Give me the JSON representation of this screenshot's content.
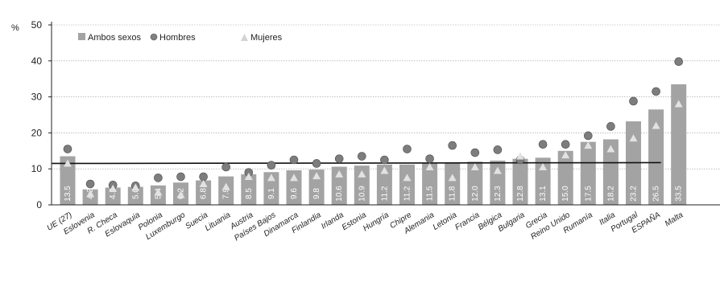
{
  "chart_data": {
    "type": "bar",
    "y_unit": "%",
    "ylim": [
      0,
      50
    ],
    "yticks": [
      0,
      10,
      20,
      30,
      40,
      50
    ],
    "grid": true,
    "legend_position": "top-left",
    "categories": [
      "UE (27)",
      "Eslovenia",
      "R. Checa",
      "Eslovaquia",
      "Polonia",
      "Luxemburgo",
      "Suecia",
      "Lituania",
      "Austria",
      "Países Bajos",
      "Dinamarca",
      "Finlandia",
      "Irlanda",
      "Estonia",
      "Hungría",
      "Chipre",
      "Alemania",
      "Letonia",
      "Francia",
      "Bélgica",
      "Bulgaria",
      "Grecia",
      "Reino Unido",
      "Rumanía",
      "Italia",
      "Portugal",
      "ESPAÑA",
      "Malta"
    ],
    "series": [
      {
        "name": "Ambos sexos",
        "marker": "bar",
        "values": [
          13.5,
          4.3,
          4.8,
          5.0,
          5.4,
          6.2,
          6.8,
          7.9,
          8.5,
          9.1,
          9.6,
          9.8,
          10.6,
          10.9,
          11.2,
          11.2,
          11.5,
          11.8,
          12.0,
          12.3,
          12.8,
          13.1,
          15.0,
          17.5,
          18.2,
          23.2,
          26.5,
          33.5
        ],
        "labels": [
          "13.5",
          "4.3",
          "4.8",
          "5.0",
          "5.4",
          "6.2",
          "6.8",
          "7.9",
          "8.5",
          "9.1",
          "9.6",
          "9.8",
          "10.6",
          "10.9",
          "11.2",
          "11.2",
          "11.5",
          "11.8",
          "12.0",
          "12.3",
          "12.8",
          "13.1",
          "15.0",
          "17.5",
          "18.2",
          "23.2",
          "26.5",
          "33.5"
        ]
      },
      {
        "name": "Hombres",
        "marker": "circle",
        "values": [
          15.5,
          5.8,
          5.5,
          5.3,
          7.5,
          7.8,
          7.8,
          10.5,
          9.0,
          11.0,
          12.5,
          11.5,
          12.8,
          13.5,
          12.5,
          15.5,
          12.8,
          16.5,
          14.5,
          15.3,
          12.5,
          16.8,
          16.8,
          19.2,
          21.8,
          28.8,
          31.5,
          39.8
        ]
      },
      {
        "name": "Mujeres",
        "marker": "triangle",
        "values": [
          11.5,
          3.0,
          4.5,
          4.8,
          3.5,
          2.8,
          5.8,
          5.0,
          7.8,
          7.5,
          7.5,
          8.0,
          8.5,
          8.5,
          9.5,
          7.5,
          10.5,
          7.5,
          10.5,
          9.5,
          13.5,
          10.5,
          13.8,
          16.5,
          15.5,
          18.5,
          22.0,
          28.0
        ]
      }
    ],
    "reference_line": {
      "y": 11.5
    }
  }
}
